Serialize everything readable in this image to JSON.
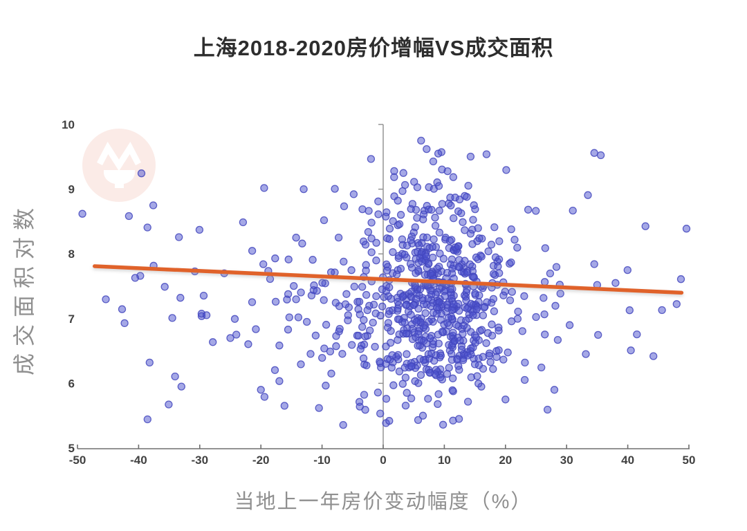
{
  "title": {
    "text": "上海2018-2020房价增幅VS成交面积"
  },
  "watermark": {
    "circle_color": "#f8ddd7",
    "logo_color": "#ffffff"
  },
  "chart_data": {
    "type": "scatter",
    "title": "上海2018-2020房价增幅VS成交面积",
    "xlabel": "当地上一年房价变动幅度（%）",
    "ylabel": "成交面积对数",
    "xlim": [
      -50,
      50
    ],
    "ylim": [
      5,
      10
    ],
    "x_ticks": [
      -50,
      -40,
      -30,
      -20,
      -10,
      0,
      10,
      20,
      30,
      40,
      50
    ],
    "y_ticks": [
      10,
      9,
      8,
      7,
      6,
      5
    ],
    "grid": false,
    "legend": "none",
    "zero_line_x": 0,
    "axis_color": "#6e6e6e",
    "zero_line_color": "#8d8d8d",
    "tick_label_color": "#414141",
    "axis_label_color": "#8f8f8f",
    "marker": {
      "color": "#4b52ce",
      "opacity": 0.5,
      "edge_color": "#4347bd",
      "edge_opacity": 0.85,
      "radius": 5
    },
    "trendline": {
      "x": [
        -47.2,
        48.8
      ],
      "y": [
        7.81,
        7.4
      ],
      "color": "#e0622a",
      "width": 5.5
    },
    "distribution": {
      "seed": 20182020,
      "clusters": [
        {
          "n": 430,
          "cx": 9,
          "sdx": 5.2,
          "cy": 7.35,
          "sdy": 0.82
        },
        {
          "n": 190,
          "cx": 5,
          "sdx": 12,
          "cy": 7.25,
          "sdy": 0.95
        },
        {
          "n": 120,
          "cx": -2,
          "sdx": 24,
          "cy": 7.1,
          "sdy": 1.0
        }
      ],
      "x_range": [
        -49.3,
        49.7
      ],
      "y_range": [
        5.33,
        9.6
      ]
    },
    "highlight_points": [
      [
        -49.2,
        8.62
      ],
      [
        -37.6,
        8.75
      ],
      [
        -42.3,
        6.93
      ],
      [
        -38.2,
        6.32
      ],
      [
        -33,
        5.95
      ],
      [
        -30.8,
        7.73
      ],
      [
        -26,
        7.7
      ],
      [
        -25,
        6.7
      ],
      [
        -20,
        5.9
      ],
      [
        49.6,
        8.39
      ],
      [
        48.7,
        7.61
      ],
      [
        44.2,
        6.42
      ],
      [
        38,
        7.55
      ],
      [
        35,
        7.52
      ],
      [
        30.5,
        6.9
      ],
      [
        28,
        5.9
      ],
      [
        6.2,
        9.75
      ],
      [
        7.1,
        9.62
      ],
      [
        9.0,
        9.55
      ],
      [
        16.9,
        9.54
      ],
      [
        1.8,
        9.28
      ],
      [
        3.3,
        9.25
      ],
      [
        -13,
        9.0
      ],
      [
        1.0,
        5.42
      ],
      [
        9.8,
        5.36
      ],
      [
        12.4,
        5.45
      ],
      [
        6.5,
        5.5
      ],
      [
        20,
        5.75
      ]
    ]
  }
}
